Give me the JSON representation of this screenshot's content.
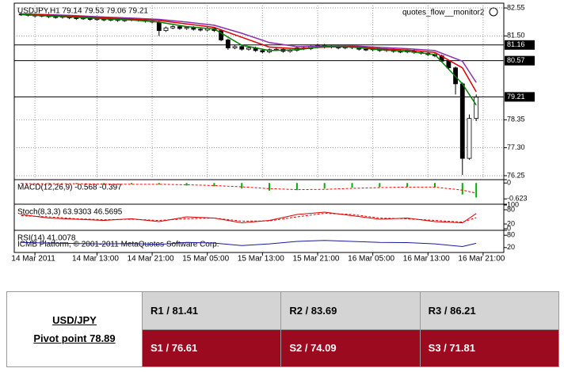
{
  "chart_data": [
    {
      "type": "candlestick",
      "title": "USDJPY,H1  79.14 79.53 79.06 79.21",
      "annotation": "quotes_flow__monitor2",
      "xlim": [
        1,
        72
      ],
      "xticks": [
        {
          "value": 4,
          "label": "14 Mar 2011"
        },
        {
          "value": 13,
          "label": "14 Mar 13:00"
        },
        {
          "value": 21,
          "label": "14 Mar 21:00"
        },
        {
          "value": 29,
          "label": "15 Mar 05:00"
        },
        {
          "value": 37,
          "label": "15 Mar 13:00"
        },
        {
          "value": 45,
          "label": "15 Mar 21:00"
        },
        {
          "value": 53,
          "label": "16 Mar 05:00"
        },
        {
          "value": 61,
          "label": "16 Mar 13:00"
        },
        {
          "value": 69,
          "label": "16 Mar 21:00"
        }
      ],
      "ylim": [
        76.13,
        82.73
      ],
      "yticks": [
        82.55,
        {
          "value": 81.5,
          "label": "81.50"
        },
        78.35,
        {
          "value": 77.3,
          "label": "77.30"
        },
        76.25
      ],
      "levels": [
        81.16,
        80.57,
        79.21
      ],
      "grid": true,
      "x": [
        2,
        3,
        4,
        5,
        6,
        7,
        8,
        9,
        10,
        11,
        12,
        13,
        14,
        15,
        16,
        17,
        18,
        19,
        20,
        21,
        22,
        23,
        24,
        25,
        26,
        27,
        28,
        29,
        30,
        31,
        32,
        33,
        34,
        35,
        36,
        37,
        38,
        39,
        40,
        41,
        42,
        43,
        44,
        45,
        46,
        47,
        48,
        49,
        50,
        51,
        52,
        53,
        54,
        55,
        56,
        57,
        58,
        59,
        60,
        61,
        62,
        63,
        64,
        65,
        66,
        67,
        68
      ],
      "open": [
        82.32,
        82.3,
        82.28,
        82.25,
        82.27,
        82.22,
        82.2,
        82.24,
        82.18,
        82.15,
        82.17,
        82.12,
        82.14,
        82.1,
        82.12,
        82.08,
        82.1,
        82.13,
        82.09,
        82.05,
        82.02,
        81.7,
        81.8,
        81.85,
        81.78,
        81.82,
        81.75,
        81.72,
        81.78,
        81.7,
        81.35,
        81.05,
        81.1,
        81.0,
        81.05,
        80.95,
        80.9,
        80.98,
        81.0,
        80.92,
        80.96,
        81.05,
        81.02,
        81.1,
        81.15,
        81.08,
        81.12,
        81.05,
        81.1,
        81.06,
        81.0,
        80.98,
        81.02,
        80.95,
        80.98,
        80.92,
        80.9,
        80.95,
        80.88,
        80.85,
        80.8,
        80.75,
        80.55,
        80.3,
        79.7,
        76.9,
        78.4
      ],
      "high": [
        82.37,
        82.35,
        82.33,
        82.32,
        82.32,
        82.27,
        82.29,
        82.29,
        82.23,
        82.22,
        82.22,
        82.19,
        82.19,
        82.17,
        82.17,
        82.15,
        82.18,
        82.18,
        82.14,
        82.1,
        82.07,
        81.85,
        81.9,
        81.9,
        81.87,
        81.87,
        81.8,
        81.83,
        81.83,
        81.75,
        81.4,
        81.15,
        81.15,
        81.1,
        81.1,
        81.0,
        81.03,
        81.05,
        81.05,
        81.01,
        81.1,
        81.1,
        81.15,
        81.2,
        81.2,
        81.17,
        81.17,
        81.15,
        81.15,
        81.11,
        81.05,
        81.07,
        81.07,
        81.03,
        81.03,
        80.97,
        81.0,
        81.0,
        80.93,
        80.9,
        80.85,
        80.8,
        80.6,
        80.35,
        79.75,
        78.55,
        79.3
      ],
      "low": [
        82.25,
        82.23,
        82.2,
        82.2,
        82.17,
        82.15,
        82.15,
        82.13,
        82.1,
        82.1,
        82.07,
        82.07,
        82.05,
        82.05,
        82.03,
        82.03,
        82.05,
        82.04,
        82.0,
        81.97,
        81.5,
        81.65,
        81.75,
        81.73,
        81.73,
        81.7,
        81.67,
        81.67,
        81.65,
        81.3,
        80.98,
        81.0,
        80.95,
        80.95,
        80.9,
        80.85,
        80.85,
        80.93,
        80.87,
        80.87,
        80.91,
        80.97,
        80.97,
        81.05,
        81.03,
        81.03,
        81.0,
        81.0,
        81.01,
        80.95,
        80.93,
        80.93,
        80.9,
        80.9,
        80.87,
        80.85,
        80.85,
        80.83,
        80.8,
        80.75,
        80.7,
        80.5,
        80.25,
        79.3,
        76.28,
        76.85,
        78.3
      ],
      "close": [
        82.3,
        82.28,
        82.25,
        82.27,
        82.22,
        82.2,
        82.24,
        82.18,
        82.15,
        82.17,
        82.12,
        82.14,
        82.1,
        82.12,
        82.08,
        82.1,
        82.13,
        82.09,
        82.05,
        82.02,
        81.7,
        81.8,
        81.85,
        81.78,
        81.82,
        81.75,
        81.72,
        81.78,
        81.7,
        81.35,
        81.05,
        81.1,
        81.0,
        81.05,
        80.95,
        80.9,
        80.98,
        81.0,
        80.92,
        80.96,
        81.05,
        81.02,
        81.1,
        81.15,
        81.08,
        81.12,
        81.05,
        81.1,
        81.06,
        81.0,
        80.98,
        81.02,
        80.95,
        80.98,
        80.92,
        80.9,
        80.95,
        80.88,
        80.85,
        80.8,
        80.75,
        80.55,
        80.3,
        79.7,
        76.9,
        78.4,
        79.2
      ],
      "series": [
        {
          "color": "#8b2fb0",
          "x": [
            2,
            6,
            10,
            14,
            18,
            22,
            26,
            30,
            34,
            38,
            42,
            46,
            50,
            54,
            58,
            62,
            66,
            68
          ],
          "values": [
            82.33,
            82.3,
            82.26,
            82.21,
            82.17,
            82.12,
            82.02,
            81.9,
            81.6,
            81.25,
            81.1,
            81.12,
            81.13,
            81.07,
            81.02,
            80.95,
            80.55,
            79.75
          ]
        },
        {
          "color": "#e00000",
          "x": [
            2,
            6,
            10,
            14,
            18,
            22,
            26,
            30,
            34,
            38,
            42,
            46,
            50,
            54,
            58,
            62,
            66,
            68
          ],
          "values": [
            82.32,
            82.28,
            82.23,
            82.18,
            82.13,
            82.08,
            81.95,
            81.82,
            81.45,
            81.08,
            81.02,
            81.08,
            81.1,
            81.02,
            80.97,
            80.88,
            80.3,
            79.4
          ]
        },
        {
          "color": "#008000",
          "x": [
            2,
            6,
            10,
            14,
            18,
            22,
            26,
            30,
            34,
            38,
            42,
            46,
            50,
            54,
            58,
            62,
            66,
            68
          ],
          "values": [
            82.3,
            82.25,
            82.2,
            82.14,
            82.1,
            82.02,
            81.85,
            81.76,
            81.15,
            80.95,
            80.98,
            81.1,
            81.08,
            80.98,
            80.92,
            80.8,
            79.7,
            78.9
          ]
        }
      ]
    },
    {
      "type": "macd",
      "title": "MACD(12,26,9) -0.568 -0.397",
      "xlim": [
        1,
        72
      ],
      "ylim": [
        -0.77,
        0.1
      ],
      "yticks": [
        0,
        -0.623
      ],
      "x": [
        2,
        6,
        10,
        14,
        18,
        22,
        26,
        30,
        34,
        38,
        42,
        46,
        50,
        54,
        58,
        62,
        66,
        68
      ],
      "series": [
        {
          "color": "#00b000",
          "values": [
            -0.02,
            -0.03,
            -0.04,
            -0.05,
            -0.05,
            -0.06,
            -0.1,
            -0.13,
            -0.22,
            -0.3,
            -0.28,
            -0.22,
            -0.18,
            -0.16,
            -0.15,
            -0.17,
            -0.45,
            -0.568
          ]
        },
        {
          "color": "#ff0000",
          "values": [
            -0.02,
            -0.03,
            -0.03,
            -0.04,
            -0.05,
            -0.05,
            -0.07,
            -0.1,
            -0.15,
            -0.22,
            -0.26,
            -0.25,
            -0.21,
            -0.18,
            -0.16,
            -0.16,
            -0.28,
            -0.397
          ]
        }
      ]
    },
    {
      "type": "oscillator",
      "title": "Stoch(8,3,3) 63.9303 46.5695",
      "xlim": [
        1,
        72
      ],
      "ylim": [
        0,
        100
      ],
      "yticks": [
        100,
        80,
        20,
        0
      ],
      "x": [
        2,
        6,
        10,
        14,
        18,
        22,
        26,
        30,
        34,
        38,
        42,
        46,
        50,
        54,
        58,
        62,
        66,
        68
      ],
      "series": [
        {
          "color": "#e00000",
          "dashed": false,
          "values": [
            60,
            45,
            40,
            35,
            42,
            30,
            50,
            45,
            25,
            35,
            60,
            70,
            55,
            40,
            45,
            30,
            25,
            63.93
          ]
        },
        {
          "color": "#e00000",
          "dashed": true,
          "values": [
            55,
            50,
            42,
            38,
            40,
            35,
            42,
            45,
            32,
            33,
            50,
            65,
            60,
            45,
            42,
            35,
            28,
            46.57
          ]
        }
      ]
    },
    {
      "type": "oscillator",
      "title": "RSI(14) 41.0078",
      "annotation": "ICMB Platform, © 2001-2011 MetaQuotes Software Corp.",
      "xlim": [
        1,
        72
      ],
      "ylim": [
        0,
        100
      ],
      "yticks": [
        80,
        20
      ],
      "x": [
        2,
        6,
        10,
        14,
        18,
        22,
        26,
        30,
        34,
        38,
        42,
        46,
        50,
        54,
        58,
        62,
        66,
        68
      ],
      "series": [
        {
          "color": "#1a1aa0",
          "dashed": false,
          "values": [
            45,
            42,
            40,
            38,
            40,
            35,
            45,
            42,
            30,
            38,
            50,
            55,
            50,
            45,
            44,
            38,
            25,
            41.01
          ]
        }
      ]
    }
  ],
  "table": {
    "symbol": "USD/JPY",
    "pivot": "Pivot point 78.89",
    "rows": [
      [
        "R1 / 81.41",
        "R2 / 83.69",
        "R3 / 86.21"
      ],
      [
        "S1 / 76.61",
        "S2 / 74.09",
        "S3 / 71.81"
      ]
    ]
  }
}
